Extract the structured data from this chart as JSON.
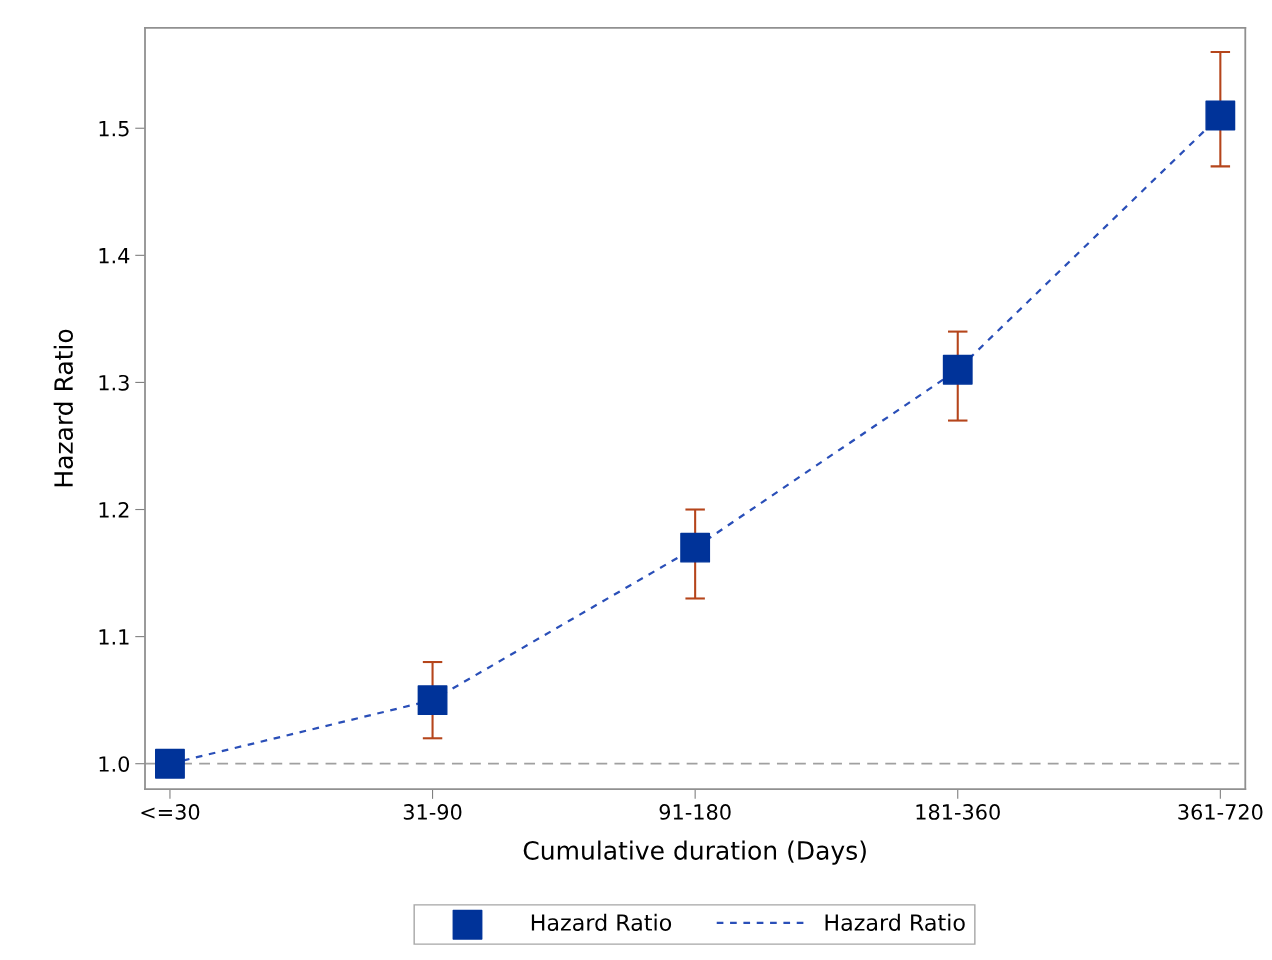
{
  "chart_data": {
    "type": "line",
    "xlabel": "Cumulative duration (Days)",
    "ylabel": "Hazard Ratio",
    "categories": [
      "<=30",
      "31-90",
      "91-180",
      "181-360",
      "361-720"
    ],
    "series": [
      {
        "name": "Hazard Ratio",
        "type": "scatter",
        "color": "#003399",
        "marker": "square",
        "values": [
          1.0,
          1.05,
          1.17,
          1.31,
          1.51
        ],
        "errors": [
          null,
          [
            1.02,
            1.08
          ],
          [
            1.13,
            1.2
          ],
          [
            1.27,
            1.34
          ],
          [
            1.47,
            1.56
          ]
        ]
      },
      {
        "name": "Hazard Ratio",
        "color": "#2a4fb8",
        "line_style": "dashed",
        "marker": "none",
        "values": [
          1.0,
          1.05,
          1.17,
          1.31,
          1.51
        ]
      }
    ],
    "ylim": [
      0.98,
      1.579
    ],
    "yticks": [
      {
        "value": 1.0,
        "label": "1.0"
      },
      1.1,
      1.2,
      1.3,
      1.4,
      1.5
    ],
    "ref_lines": [
      {
        "axis": "y",
        "value": 1.0,
        "color": "#a0a0a0",
        "line_style": "dashed"
      }
    ],
    "grid": false,
    "legend": "bottom"
  }
}
